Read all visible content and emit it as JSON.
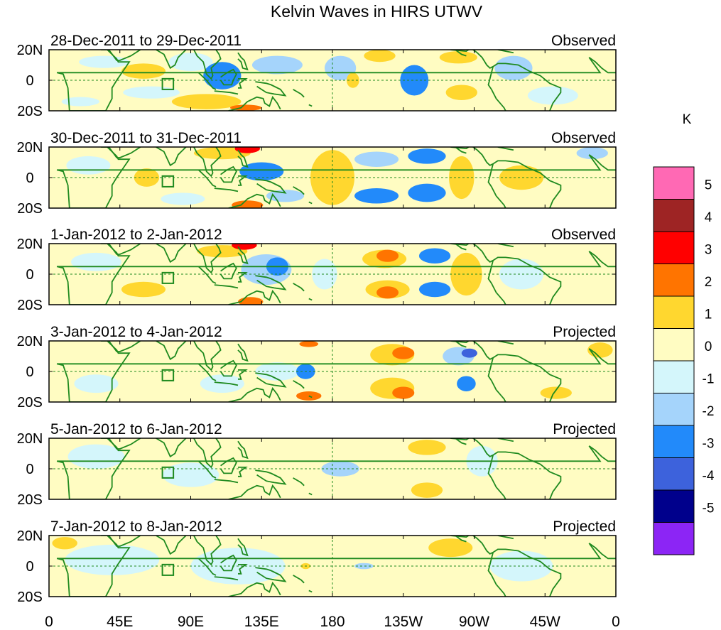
{
  "chart_data": {
    "type": "heatmap",
    "title": "Kelvin Waves in HIRS UTWV",
    "colorbar": {
      "unit_label": "K",
      "tick_labels": [
        "5",
        "4",
        "3",
        "2",
        "1",
        "0",
        "-1",
        "-2",
        "-3",
        "-4",
        "-5"
      ],
      "bins_top_to_bottom": [
        {
          "range": "> 5",
          "color": "#ff69b4"
        },
        {
          "range": "4 to 5",
          "color": "#9e2424"
        },
        {
          "range": "3 to 4",
          "color": "#ff0000"
        },
        {
          "range": "2 to 3",
          "color": "#ff7400"
        },
        {
          "range": "1 to 2",
          "color": "#ffd72f"
        },
        {
          "range": "0 to 1",
          "color": "#fffcc2"
        },
        {
          "range": "-1 to 0",
          "color": "#d4f6fb"
        },
        {
          "range": "-2 to -1",
          "color": "#a5d4fb"
        },
        {
          "range": "-3 to -2",
          "color": "#228afa"
        },
        {
          "range": "-4 to -3",
          "color": "#3d62dc"
        },
        {
          "range": "-5 to -4",
          "color": "#00008c"
        },
        {
          "range": "< -5",
          "color": "#8c25f5"
        }
      ]
    },
    "x_axis": {
      "range_deg_east": [
        0,
        360
      ],
      "tick_positions_deg_east": [
        0,
        45,
        90,
        135,
        180,
        225,
        270,
        315,
        360
      ],
      "tick_labels": [
        "0",
        "45E",
        "90E",
        "135E",
        "180",
        "135W",
        "90W",
        "45W",
        "0"
      ]
    },
    "y_axis": {
      "range_deg_lat": [
        -20,
        20
      ],
      "tick_positions_deg_lat": [
        20,
        0,
        -20
      ],
      "tick_labels": [
        "20N",
        "0",
        "20S"
      ]
    },
    "reference_lines": {
      "equator_lat": 0,
      "dateline_lon_east": 180
    },
    "panels": [
      {
        "period": "28-Dec-2011 to 29-Dec-2011",
        "kind": "Observed",
        "anomalies": [
          {
            "lon": 20,
            "lat": -14,
            "rx": 12,
            "ry": 3,
            "k": -0.6
          },
          {
            "lon": 35,
            "lat": 12,
            "rx": 16,
            "ry": 4,
            "k": -0.6
          },
          {
            "lon": 60,
            "lat": 6,
            "rx": 14,
            "ry": 5,
            "k": 1.4
          },
          {
            "lon": 65,
            "lat": -8,
            "rx": 18,
            "ry": 4,
            "k": -0.6
          },
          {
            "lon": 90,
            "lat": 12,
            "rx": 14,
            "ry": 6,
            "k": -0.6
          },
          {
            "lon": 100,
            "lat": -14,
            "rx": 22,
            "ry": 5,
            "k": 1.3
          },
          {
            "lon": 110,
            "lat": 3,
            "rx": 12,
            "ry": 9,
            "k": -2.4
          },
          {
            "lon": 125,
            "lat": -18,
            "rx": 10,
            "ry": 2,
            "k": 2.5
          },
          {
            "lon": 145,
            "lat": 10,
            "rx": 16,
            "ry": 6,
            "k": -1.3
          },
          {
            "lon": 185,
            "lat": 8,
            "rx": 10,
            "ry": 8,
            "k": -1.2
          },
          {
            "lon": 193,
            "lat": 0,
            "rx": 4,
            "ry": 5,
            "k": 1.5
          },
          {
            "lon": 210,
            "lat": 16,
            "rx": 10,
            "ry": 4,
            "k": 1.5
          },
          {
            "lon": 232,
            "lat": 0,
            "rx": 9,
            "ry": 10,
            "k": -2.4
          },
          {
            "lon": 260,
            "lat": 15,
            "rx": 12,
            "ry": 4,
            "k": 1.3
          },
          {
            "lon": 262,
            "lat": -8,
            "rx": 10,
            "ry": 5,
            "k": 1.3
          },
          {
            "lon": 295,
            "lat": 8,
            "rx": 12,
            "ry": 8,
            "k": -1.2
          },
          {
            "lon": 320,
            "lat": -10,
            "rx": 16,
            "ry": 6,
            "k": -0.6
          }
        ]
      },
      {
        "period": "30-Dec-2011 to 31-Dec-2011",
        "kind": "Observed",
        "anomalies": [
          {
            "lon": 25,
            "lat": 8,
            "rx": 14,
            "ry": 6,
            "k": -0.6
          },
          {
            "lon": 62,
            "lat": 0,
            "rx": 8,
            "ry": 6,
            "k": 1.4
          },
          {
            "lon": 85,
            "lat": -14,
            "rx": 14,
            "ry": 4,
            "k": -0.6
          },
          {
            "lon": 110,
            "lat": 16,
            "rx": 18,
            "ry": 4,
            "k": 1.2
          },
          {
            "lon": 126,
            "lat": 19,
            "rx": 8,
            "ry": 3,
            "k": 3.2
          },
          {
            "lon": 126,
            "lat": -18,
            "rx": 10,
            "ry": 3,
            "k": 2.5
          },
          {
            "lon": 135,
            "lat": 4,
            "rx": 14,
            "ry": 6,
            "k": -2.4
          },
          {
            "lon": 150,
            "lat": -12,
            "rx": 12,
            "ry": 4,
            "k": -1.4
          },
          {
            "lon": 180,
            "lat": 0,
            "rx": 14,
            "ry": 18,
            "k": 1.4
          },
          {
            "lon": 208,
            "lat": 12,
            "rx": 14,
            "ry": 5,
            "k": -1.4
          },
          {
            "lon": 208,
            "lat": -12,
            "rx": 14,
            "ry": 5,
            "k": -2.2
          },
          {
            "lon": 240,
            "lat": 14,
            "rx": 12,
            "ry": 5,
            "k": -2.3
          },
          {
            "lon": 240,
            "lat": -10,
            "rx": 12,
            "ry": 6,
            "k": -2.3
          },
          {
            "lon": 262,
            "lat": 0,
            "rx": 8,
            "ry": 14,
            "k": 1.2
          },
          {
            "lon": 300,
            "lat": 0,
            "rx": 14,
            "ry": 8,
            "k": 1.2
          },
          {
            "lon": 345,
            "lat": 16,
            "rx": 10,
            "ry": 4,
            "k": -1.2
          }
        ]
      },
      {
        "period": "1-Jan-2012 to 2-Jan-2012",
        "kind": "Observed",
        "anomalies": [
          {
            "lon": 30,
            "lat": 8,
            "rx": 16,
            "ry": 6,
            "k": -0.6
          },
          {
            "lon": 60,
            "lat": -10,
            "rx": 14,
            "ry": 5,
            "k": 1.3
          },
          {
            "lon": 110,
            "lat": 15,
            "rx": 16,
            "ry": 4,
            "k": 1.2
          },
          {
            "lon": 124,
            "lat": 19,
            "rx": 8,
            "ry": 3,
            "k": 3.2
          },
          {
            "lon": 128,
            "lat": -18,
            "rx": 8,
            "ry": 3,
            "k": 2.5
          },
          {
            "lon": 138,
            "lat": 3,
            "rx": 16,
            "ry": 10,
            "k": -1.4
          },
          {
            "lon": 145,
            "lat": 5,
            "rx": 7,
            "ry": 6,
            "k": -2.5
          },
          {
            "lon": 175,
            "lat": 0,
            "rx": 8,
            "ry": 10,
            "k": -0.6
          },
          {
            "lon": 213,
            "lat": 10,
            "rx": 14,
            "ry": 6,
            "k": 1.4
          },
          {
            "lon": 215,
            "lat": 12,
            "rx": 7,
            "ry": 4,
            "k": 2.4
          },
          {
            "lon": 215,
            "lat": -10,
            "rx": 14,
            "ry": 6,
            "k": 1.4
          },
          {
            "lon": 215,
            "lat": -12,
            "rx": 7,
            "ry": 4,
            "k": 2.4
          },
          {
            "lon": 245,
            "lat": 12,
            "rx": 10,
            "ry": 5,
            "k": -2.4
          },
          {
            "lon": 245,
            "lat": -10,
            "rx": 10,
            "ry": 5,
            "k": -2.4
          },
          {
            "lon": 265,
            "lat": 0,
            "rx": 10,
            "ry": 14,
            "k": 1.2
          },
          {
            "lon": 300,
            "lat": 0,
            "rx": 14,
            "ry": 10,
            "k": -0.6
          }
        ]
      },
      {
        "period": "3-Jan-2012 to 4-Jan-2012",
        "kind": "Projected",
        "anomalies": [
          {
            "lon": 30,
            "lat": -8,
            "rx": 14,
            "ry": 6,
            "k": -0.6
          },
          {
            "lon": 60,
            "lat": 0,
            "rx": 10,
            "ry": 14,
            "k": 0.5
          },
          {
            "lon": 110,
            "lat": -8,
            "rx": 14,
            "ry": 6,
            "k": -0.6
          },
          {
            "lon": 145,
            "lat": 0,
            "rx": 14,
            "ry": 6,
            "k": -0.6
          },
          {
            "lon": 163,
            "lat": 0,
            "rx": 6,
            "ry": 5,
            "k": -2.4
          },
          {
            "lon": 165,
            "lat": -16,
            "rx": 8,
            "ry": 3,
            "k": 2.5
          },
          {
            "lon": 165,
            "lat": 18,
            "rx": 6,
            "ry": 2,
            "k": 2.5
          },
          {
            "lon": 218,
            "lat": 11,
            "rx": 14,
            "ry": 7,
            "k": 1.4
          },
          {
            "lon": 225,
            "lat": 12,
            "rx": 7,
            "ry": 4,
            "k": 2.4
          },
          {
            "lon": 218,
            "lat": -11,
            "rx": 14,
            "ry": 7,
            "k": 1.4
          },
          {
            "lon": 225,
            "lat": -14,
            "rx": 7,
            "ry": 4,
            "k": 2.4
          },
          {
            "lon": 260,
            "lat": 10,
            "rx": 10,
            "ry": 6,
            "k": -1.4
          },
          {
            "lon": 265,
            "lat": -8,
            "rx": 6,
            "ry": 5,
            "k": -2.4
          },
          {
            "lon": 267,
            "lat": 12,
            "rx": 5,
            "ry": 3,
            "k": -3.3
          },
          {
            "lon": 322,
            "lat": -14,
            "rx": 10,
            "ry": 4,
            "k": 1.2
          },
          {
            "lon": 350,
            "lat": 14,
            "rx": 8,
            "ry": 5,
            "k": 1.2
          }
        ]
      },
      {
        "period": "5-Jan-2012 to 6-Jan-2012",
        "kind": "Projected",
        "anomalies": [
          {
            "lon": 30,
            "lat": 8,
            "rx": 18,
            "ry": 8,
            "k": -0.6
          },
          {
            "lon": 90,
            "lat": -4,
            "rx": 18,
            "ry": 8,
            "k": -0.6
          },
          {
            "lon": 185,
            "lat": 0,
            "rx": 12,
            "ry": 5,
            "k": -1.3
          },
          {
            "lon": 240,
            "lat": 14,
            "rx": 12,
            "ry": 5,
            "k": 1.4
          },
          {
            "lon": 240,
            "lat": -14,
            "rx": 10,
            "ry": 5,
            "k": 1.4
          },
          {
            "lon": 275,
            "lat": 5,
            "rx": 10,
            "ry": 10,
            "k": -0.6
          },
          {
            "lon": 335,
            "lat": 0,
            "rx": 20,
            "ry": 10,
            "k": 0.5
          }
        ]
      },
      {
        "period": "7-Jan-2012 to 8-Jan-2012",
        "kind": "Projected",
        "anomalies": [
          {
            "lon": 10,
            "lat": 15,
            "rx": 8,
            "ry": 4,
            "k": 1.2
          },
          {
            "lon": 40,
            "lat": 4,
            "rx": 30,
            "ry": 10,
            "k": -0.6
          },
          {
            "lon": 120,
            "lat": 0,
            "rx": 30,
            "ry": 12,
            "k": -0.6
          },
          {
            "lon": 163,
            "lat": 0,
            "rx": 3,
            "ry": 2,
            "k": 1.5
          },
          {
            "lon": 200,
            "lat": 0,
            "rx": 6,
            "ry": 2,
            "k": -1.2
          },
          {
            "lon": 255,
            "lat": 12,
            "rx": 14,
            "ry": 6,
            "k": 1.2
          },
          {
            "lon": 300,
            "lat": 0,
            "rx": 20,
            "ry": 10,
            "k": -0.6
          }
        ]
      }
    ]
  }
}
